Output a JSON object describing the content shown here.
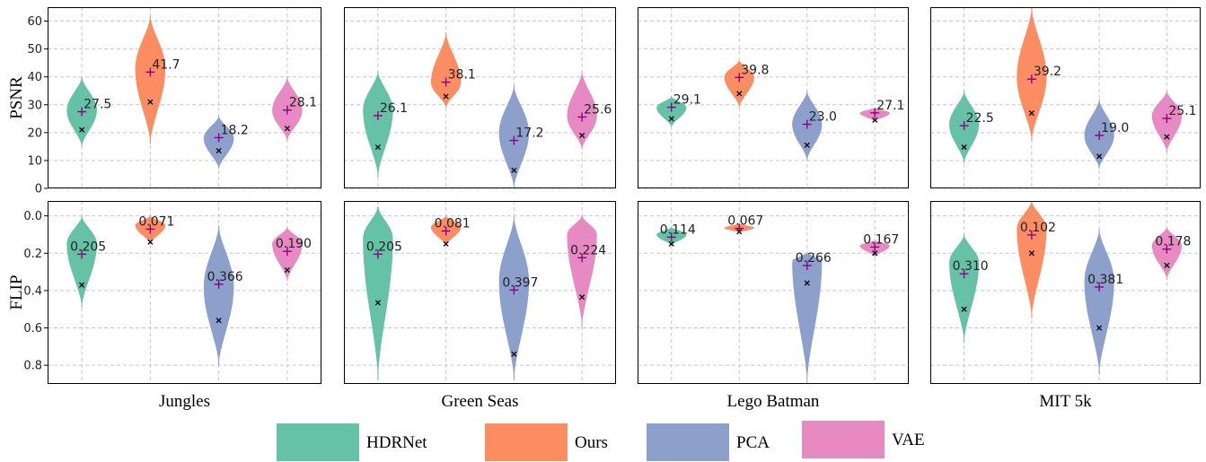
{
  "chart_data": {
    "type": "violin",
    "columns": [
      "Jungles",
      "Green Seas",
      "Lego Batman",
      "MIT 5k"
    ],
    "methods": [
      "HDRNet",
      "Ours",
      "PCA",
      "VAE"
    ],
    "colors": {
      "HDRNet": "#66c2a5",
      "Ours": "#fc8d62",
      "PCA": "#8da0cb",
      "VAE": "#e78ac3"
    },
    "mean_marker_color": "#8b008b",
    "median_marker_color": "#000000",
    "rows": [
      {
        "metric": "PSNR",
        "ylabel": "PSNR",
        "ylim": [
          0,
          65
        ],
        "yticks": [
          "0",
          "10",
          "20",
          "30",
          "40",
          "50",
          "60"
        ],
        "inverted": false,
        "panels": [
          {
            "column": "Jungles",
            "violins": [
              {
                "method": "HDRNet",
                "mean": 27.5,
                "median": 21.0,
                "min": 15,
                "max": 40,
                "mode": 28,
                "label": "27.5"
              },
              {
                "method": "Ours",
                "mean": 41.7,
                "median": 31.0,
                "min": 16,
                "max": 62,
                "mode": 43,
                "label": "41.7"
              },
              {
                "method": "PCA",
                "mean": 18.2,
                "median": 13.5,
                "min": 7,
                "max": 26,
                "mode": 18,
                "label": "18.2"
              },
              {
                "method": "VAE",
                "mean": 28.1,
                "median": 21.5,
                "min": 17,
                "max": 40,
                "mode": 28,
                "label": "28.1"
              }
            ]
          },
          {
            "column": "Green Seas",
            "violins": [
              {
                "method": "HDRNet",
                "mean": 26.1,
                "median": 14.8,
                "min": 4,
                "max": 42,
                "mode": 28,
                "label": "26.1"
              },
              {
                "method": "Ours",
                "mean": 38.1,
                "median": 33.0,
                "min": 29,
                "max": 56,
                "mode": 38,
                "label": "38.1"
              },
              {
                "method": "PCA",
                "mean": 17.2,
                "median": 6.5,
                "min": 0,
                "max": 37,
                "mode": 20,
                "label": "17.2"
              },
              {
                "method": "VAE",
                "mean": 25.6,
                "median": 19.0,
                "min": 14,
                "max": 42,
                "mode": 26,
                "label": "25.6"
              }
            ]
          },
          {
            "column": "Lego Batman",
            "violins": [
              {
                "method": "HDRNet",
                "mean": 29.1,
                "median": 25.0,
                "min": 22,
                "max": 33,
                "mode": 29,
                "label": "29.1"
              },
              {
                "method": "Ours",
                "mean": 39.8,
                "median": 34.0,
                "min": 29,
                "max": 46,
                "mode": 40,
                "label": "39.8"
              },
              {
                "method": "PCA",
                "mean": 23.0,
                "median": 15.5,
                "min": 10,
                "max": 35,
                "mode": 23,
                "label": "23.0"
              },
              {
                "method": "VAE",
                "mean": 27.1,
                "median": 24.5,
                "min": 24,
                "max": 29,
                "mode": 27,
                "label": "27.1"
              }
            ]
          },
          {
            "column": "MIT 5k",
            "violins": [
              {
                "method": "HDRNet",
                "mean": 22.5,
                "median": 14.8,
                "min": 9,
                "max": 35,
                "mode": 23,
                "label": "22.5"
              },
              {
                "method": "Ours",
                "mean": 39.2,
                "median": 27.0,
                "min": 17,
                "max": 65,
                "mode": 40,
                "label": "39.2"
              },
              {
                "method": "PCA",
                "mean": 19.0,
                "median": 11.5,
                "min": 7,
                "max": 32,
                "mode": 19,
                "label": "19.0"
              },
              {
                "method": "VAE",
                "mean": 25.1,
                "median": 18.5,
                "min": 13,
                "max": 35,
                "mode": 26,
                "label": "25.1"
              }
            ]
          }
        ]
      },
      {
        "metric": "FLIP",
        "ylabel": "FLIP",
        "ylim": [
          -0.08,
          0.9
        ],
        "yticks": [
          "0.0",
          "0.2",
          "0.4",
          "0.6",
          "0.8"
        ],
        "inverted": true,
        "panels": [
          {
            "column": "Jungles",
            "violins": [
              {
                "method": "HDRNet",
                "mean": 0.205,
                "median": 0.37,
                "min": 0.0,
                "max": 0.49,
                "mode": 0.15,
                "label": "0.205"
              },
              {
                "method": "Ours",
                "mean": 0.071,
                "median": 0.14,
                "min": 0.0,
                "max": 0.15,
                "mode": 0.05,
                "label": "0.071"
              },
              {
                "method": "PCA",
                "mean": 0.366,
                "median": 0.56,
                "min": 0.05,
                "max": 0.8,
                "mode": 0.38,
                "label": "0.366"
              },
              {
                "method": "VAE",
                "mean": 0.19,
                "median": 0.29,
                "min": 0.06,
                "max": 0.35,
                "mode": 0.15,
                "label": "0.190"
              }
            ]
          },
          {
            "column": "Green Seas",
            "violins": [
              {
                "method": "HDRNet",
                "mean": 0.205,
                "median": 0.465,
                "min": -0.05,
                "max": 0.88,
                "mode": 0.12,
                "label": "0.205"
              },
              {
                "method": "Ours",
                "mean": 0.081,
                "median": 0.15,
                "min": 0.0,
                "max": 0.16,
                "mode": 0.06,
                "label": "0.081"
              },
              {
                "method": "PCA",
                "mean": 0.397,
                "median": 0.74,
                "min": 0.0,
                "max": 0.88,
                "mode": 0.35,
                "label": "0.397"
              },
              {
                "method": "VAE",
                "mean": 0.224,
                "median": 0.435,
                "min": 0.0,
                "max": 0.6,
                "mode": 0.1,
                "label": "0.224"
              }
            ]
          },
          {
            "column": "Lego Batman",
            "violins": [
              {
                "method": "HDRNet",
                "mean": 0.114,
                "median": 0.15,
                "min": 0.06,
                "max": 0.16,
                "mode": 0.1,
                "label": "0.114"
              },
              {
                "method": "Ours",
                "mean": 0.067,
                "median": 0.085,
                "min": 0.04,
                "max": 0.09,
                "mode": 0.065,
                "label": "0.067"
              },
              {
                "method": "PCA",
                "mean": 0.266,
                "median": 0.36,
                "min": 0.2,
                "max": 0.9,
                "mode": 0.24,
                "label": "0.266"
              },
              {
                "method": "VAE",
                "mean": 0.167,
                "median": 0.2,
                "min": 0.13,
                "max": 0.22,
                "mode": 0.16,
                "label": "0.167"
              }
            ]
          },
          {
            "column": "MIT 5k",
            "violins": [
              {
                "method": "HDRNet",
                "mean": 0.31,
                "median": 0.5,
                "min": 0.1,
                "max": 0.68,
                "mode": 0.25,
                "label": "0.310"
              },
              {
                "method": "Ours",
                "mean": 0.102,
                "median": 0.2,
                "min": -0.08,
                "max": 0.55,
                "mode": 0.07,
                "label": "0.102"
              },
              {
                "method": "PCA",
                "mean": 0.381,
                "median": 0.6,
                "min": 0.07,
                "max": 0.85,
                "mode": 0.35,
                "label": "0.381"
              },
              {
                "method": "VAE",
                "mean": 0.178,
                "median": 0.265,
                "min": 0.06,
                "max": 0.34,
                "mode": 0.16,
                "label": "0.178"
              }
            ]
          }
        ]
      }
    ],
    "legend": {
      "position": "bottom",
      "entries": [
        "HDRNet",
        "Ours",
        "PCA",
        "VAE"
      ]
    },
    "grid": true
  }
}
